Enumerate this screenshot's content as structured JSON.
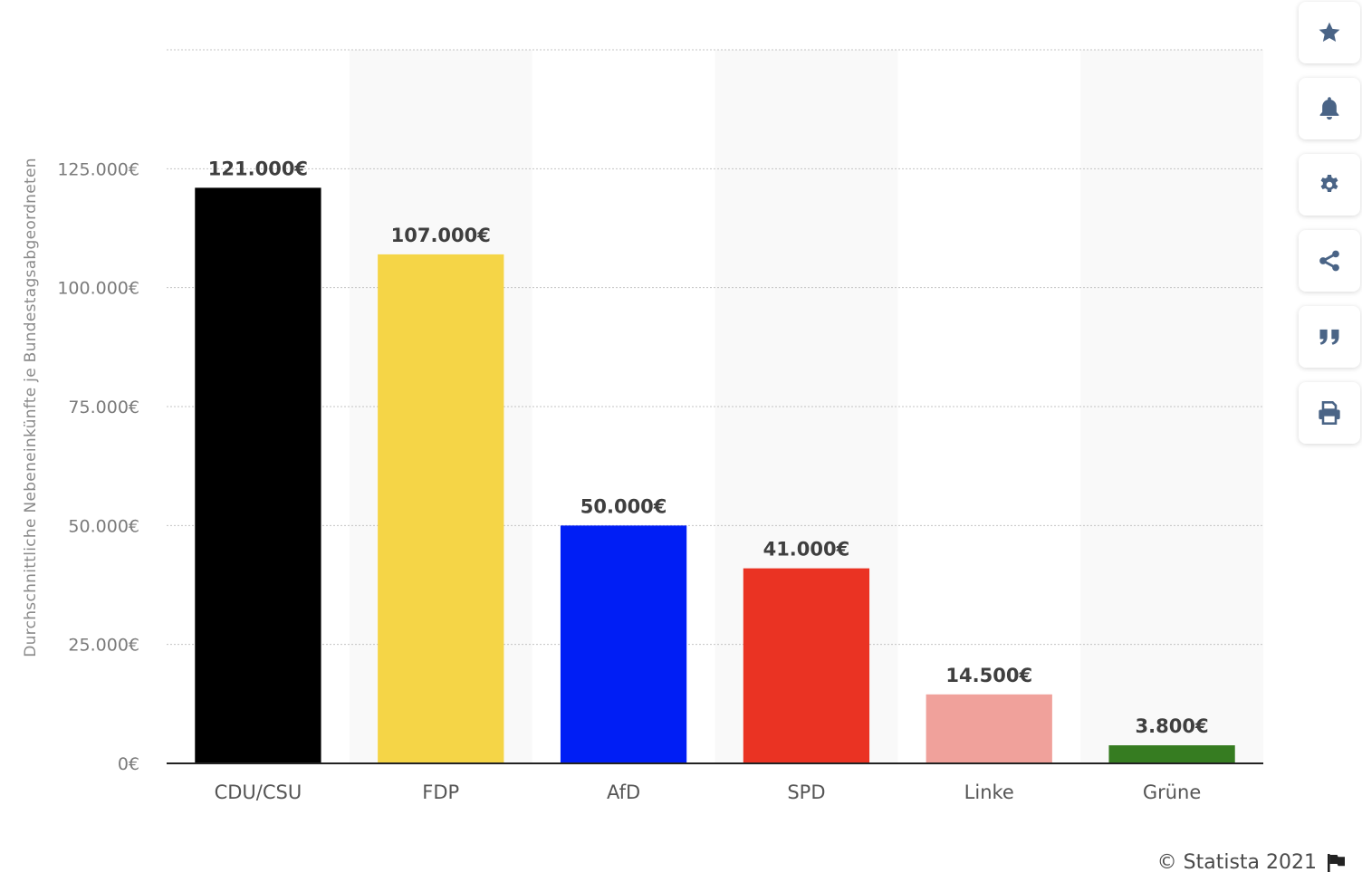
{
  "chart_data": {
    "type": "bar",
    "categories": [
      "CDU/CSU",
      "FDP",
      "AfD",
      "SPD",
      "Linke",
      "Grüne"
    ],
    "values": [
      121000,
      107000,
      50000,
      41000,
      14500,
      3800
    ],
    "value_labels": [
      "121.000€",
      "107.000€",
      "50.000€",
      "41.000€",
      "14.500€",
      "3.800€"
    ],
    "colors": [
      "#000000",
      "#f5d547",
      "#001ef5",
      "#ea3323",
      "#f0a19b",
      "#367c21"
    ],
    "ylabel": "Durchschnittliche Nebeneinkünfte je Bundestagsabgeordneten",
    "ylim": [
      0,
      150000
    ],
    "yticks": [
      0,
      25000,
      50000,
      75000,
      100000,
      125000
    ],
    "ytick_labels": [
      "0€",
      "25.000€",
      "50.000€",
      "75.000€",
      "100.000€",
      "125.000€"
    ],
    "grid": true,
    "legend": "none"
  },
  "toolbar": {
    "buttons": [
      {
        "name": "favorite-button",
        "icon": "star-icon"
      },
      {
        "name": "notification-button",
        "icon": "bell-icon"
      },
      {
        "name": "settings-button",
        "icon": "gear-icon"
      },
      {
        "name": "share-button",
        "icon": "share-icon"
      },
      {
        "name": "cite-button",
        "icon": "quote-icon"
      },
      {
        "name": "print-button",
        "icon": "printer-icon"
      }
    ],
    "icon_color": "#4a6486"
  },
  "footer": {
    "copyright": "© Statista 2021",
    "flag_icon": "flag-icon"
  }
}
